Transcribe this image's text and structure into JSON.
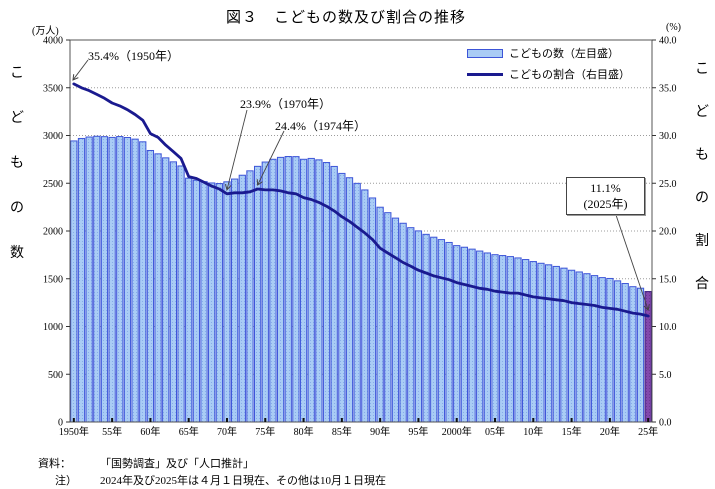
{
  "title": "図３　こどもの数及び割合の推移",
  "left_axis": {
    "unit": "(万人)",
    "title_chars": [
      "こ",
      "ど",
      "も",
      "の",
      "数"
    ],
    "tick_labels": [
      "4000",
      "3500",
      "3000",
      "2500",
      "2000",
      "1500",
      "1000",
      "500",
      "0"
    ]
  },
  "right_axis": {
    "unit": "(%)",
    "title_chars": [
      "こ",
      "ど",
      "も",
      "の",
      "割",
      "合"
    ],
    "tick_labels": [
      "40.0",
      "35.0",
      "30.0",
      "25.0",
      "20.0",
      "15.0",
      "10.0",
      "5.0",
      "0.0"
    ]
  },
  "legend": [
    {
      "label": "こどもの数（左目盛）",
      "swatch": "bar-swatch-icon"
    },
    {
      "label": "こどもの割合（右目盛）",
      "swatch": "line-swatch-icon"
    }
  ],
  "annotations": [
    {
      "text": "35.4%（1950年）",
      "year": 1950,
      "value_pct": 35.4
    },
    {
      "text": "23.9%（1970年）",
      "year": 1970,
      "value_pct": 23.9
    },
    {
      "text": "24.4%（1974年）",
      "year": 1974,
      "value_pct": 24.4
    }
  ],
  "callout_box": {
    "line1": "11.1%",
    "line2": "(2025年)",
    "year": 2025,
    "value_pct": 11.1
  },
  "footer": {
    "source_label": "資料：",
    "source_text": "「国勢調査」及び「人口推計」",
    "note_label": "注）",
    "note_text": "2024年及び2025年は４月１日現在、その他は10月１日現在"
  },
  "colors": {
    "bar_fill": "#A9CCF5",
    "bar_dot": "#7FA3E8",
    "bar_border": "#3D55D8",
    "last_bar_fill": "#8248AC",
    "last_bar_dot": "#65338F",
    "last_bar_border": "#41207F",
    "ratio_line": "#1A1A8F",
    "grid": "#9C9C9C",
    "plot_border": "#555555",
    "arrow": "#444444"
  },
  "chart_data": {
    "type": "bar",
    "title": "図３　こどもの数及び割合の推移",
    "xlabel": "年",
    "ylabel_left": "こどもの数 (万人)",
    "ylabel_right": "こどもの割合 (%)",
    "ylim_left": [
      0,
      4000
    ],
    "ylim_right": [
      0,
      40
    ],
    "grid": true,
    "legend_position": "top-right-inside",
    "x_tick_labels": [
      "1950年",
      "55年",
      "60年",
      "65年",
      "70年",
      "75年",
      "80年",
      "85年",
      "90年",
      "95年",
      "2000年",
      "05年",
      "10年",
      "15年",
      "20年",
      "25年"
    ],
    "x_tick_every": 5,
    "years": [
      1950,
      1951,
      1952,
      1953,
      1954,
      1955,
      1956,
      1957,
      1958,
      1959,
      1960,
      1961,
      1962,
      1963,
      1964,
      1965,
      1966,
      1967,
      1968,
      1969,
      1970,
      1971,
      1972,
      1973,
      1974,
      1975,
      1976,
      1977,
      1978,
      1979,
      1980,
      1981,
      1982,
      1983,
      1984,
      1985,
      1986,
      1987,
      1988,
      1989,
      1990,
      1991,
      1992,
      1993,
      1994,
      1995,
      1996,
      1997,
      1998,
      1999,
      2000,
      2001,
      2002,
      2003,
      2004,
      2005,
      2006,
      2007,
      2008,
      2009,
      2010,
      2011,
      2012,
      2013,
      2014,
      2015,
      2016,
      2017,
      2018,
      2019,
      2020,
      2021,
      2022,
      2023,
      2024,
      2025
    ],
    "series": [
      {
        "name": "こどもの数（左目盛）",
        "type": "bar",
        "axis": "left",
        "values": [
          2943,
          2969,
          2984,
          2992,
          2988,
          2980,
          2989,
          2979,
          2962,
          2934,
          2843,
          2808,
          2766,
          2724,
          2681,
          2553,
          2532,
          2517,
          2503,
          2497,
          2515,
          2544,
          2584,
          2630,
          2677,
          2722,
          2751,
          2771,
          2780,
          2779,
          2751,
          2760,
          2745,
          2717,
          2676,
          2603,
          2558,
          2499,
          2430,
          2346,
          2249,
          2192,
          2135,
          2081,
          2035,
          2001,
          1965,
          1935,
          1910,
          1880,
          1847,
          1830,
          1810,
          1790,
          1770,
          1752,
          1743,
          1732,
          1718,
          1701,
          1680,
          1662,
          1646,
          1629,
          1611,
          1589,
          1571,
          1553,
          1533,
          1512,
          1503,
          1478,
          1450,
          1417,
          1401,
          1366
        ]
      },
      {
        "name": "こどもの割合（右目盛）",
        "type": "line",
        "axis": "right",
        "values": [
          35.4,
          35.0,
          34.7,
          34.3,
          33.9,
          33.4,
          33.1,
          32.7,
          32.2,
          31.6,
          30.2,
          29.8,
          29.0,
          28.3,
          27.6,
          25.7,
          25.5,
          25.1,
          24.7,
          24.4,
          23.9,
          24.0,
          24.0,
          24.1,
          24.4,
          24.3,
          24.3,
          24.2,
          24.0,
          23.9,
          23.5,
          23.3,
          23.0,
          22.6,
          22.1,
          21.5,
          21.0,
          20.4,
          19.8,
          19.1,
          18.2,
          17.7,
          17.2,
          16.7,
          16.3,
          15.9,
          15.6,
          15.3,
          15.1,
          14.9,
          14.6,
          14.4,
          14.2,
          14.0,
          13.9,
          13.7,
          13.6,
          13.5,
          13.5,
          13.3,
          13.1,
          13.0,
          12.9,
          12.8,
          12.7,
          12.5,
          12.4,
          12.3,
          12.2,
          12.0,
          11.9,
          11.8,
          11.6,
          11.4,
          11.3,
          11.1
        ]
      }
    ],
    "highlight_last_bar_year": 2025
  }
}
